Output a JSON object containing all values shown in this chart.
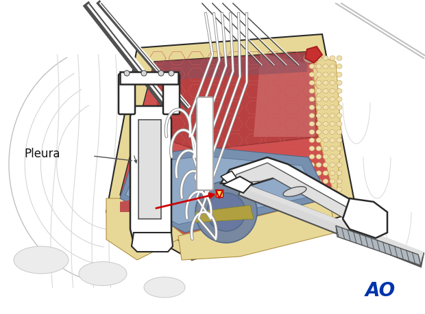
{
  "background_color": "#ffffff",
  "pleura_label": "Pleura",
  "ao_text": "AO",
  "ao_color": "#0033aa",
  "ao_fontsize": 20,
  "fig_width": 6.2,
  "fig_height": 4.59,
  "dpi": 100
}
